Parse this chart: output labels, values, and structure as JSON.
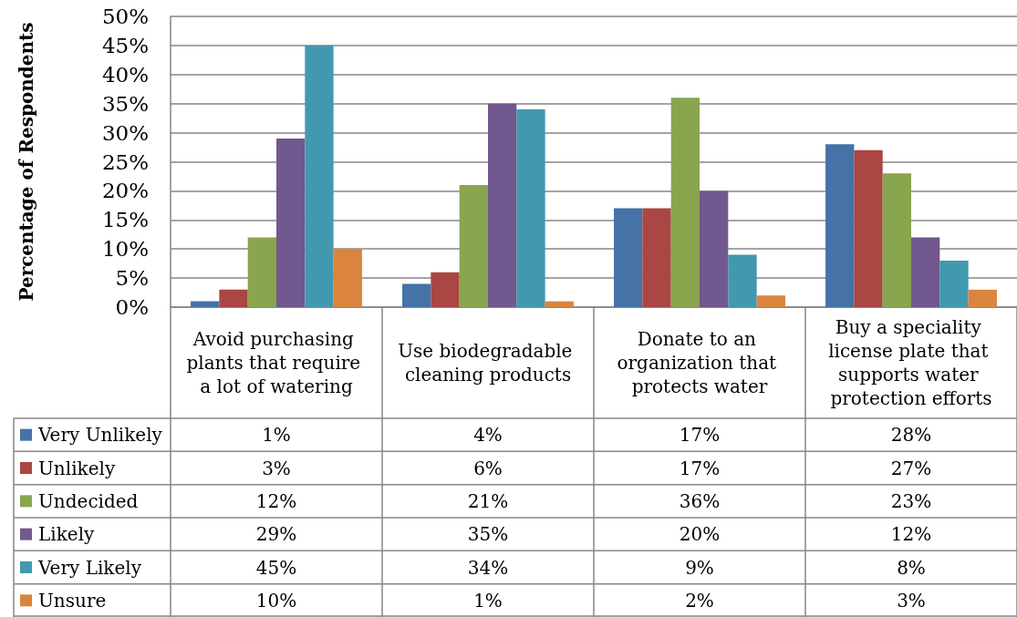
{
  "chart_data": {
    "type": "bar",
    "ylabel": "Percentage of Respondents",
    "categories": [
      "Avoid purchasing plants that require a lot of watering",
      "Use biodegradable cleaning products",
      "Donate to an organization that protects water",
      "Buy a speciality license plate that supports water protection efforts"
    ],
    "series": [
      {
        "name": "Very Unlikely",
        "color": "#4572a7",
        "values": [
          1,
          4,
          17,
          28
        ],
        "value_labels": [
          "1%",
          "4%",
          "17%",
          "28%"
        ]
      },
      {
        "name": "Unlikely",
        "color": "#aa4643",
        "values": [
          3,
          6,
          17,
          27
        ],
        "value_labels": [
          "3%",
          "6%",
          "17%",
          "27%"
        ]
      },
      {
        "name": "Undecided",
        "color": "#89a54e",
        "values": [
          12,
          21,
          36,
          23
        ],
        "value_labels": [
          "12%",
          "21%",
          "36%",
          "23%"
        ]
      },
      {
        "name": "Likely",
        "color": "#71588f",
        "values": [
          29,
          35,
          20,
          12
        ],
        "value_labels": [
          "29%",
          "35%",
          "20%",
          "12%"
        ]
      },
      {
        "name": "Very Likely",
        "color": "#4198af",
        "values": [
          45,
          34,
          9,
          8
        ],
        "value_labels": [
          "45%",
          "34%",
          "9%",
          "8%"
        ]
      },
      {
        "name": "Unsure",
        "color": "#db843d",
        "values": [
          10,
          1,
          2,
          3
        ],
        "value_labels": [
          "10%",
          "1%",
          "2%",
          "3%"
        ]
      }
    ],
    "ylim": [
      0,
      50
    ],
    "yticks": [
      {
        "value": 0,
        "label": "0%"
      },
      {
        "value": 5,
        "label": "5%"
      },
      {
        "value": 10,
        "label": "10%"
      },
      {
        "value": 15,
        "label": "15%"
      },
      {
        "value": 20,
        "label": "20%"
      },
      {
        "value": 25,
        "label": "25%"
      },
      {
        "value": 30,
        "label": "30%"
      },
      {
        "value": 35,
        "label": "35%"
      },
      {
        "value": 40,
        "label": "40%"
      },
      {
        "value": 45,
        "label": "45%"
      },
      {
        "value": 50,
        "label": "50%"
      }
    ],
    "grid": "y",
    "legend": "bottom left"
  }
}
